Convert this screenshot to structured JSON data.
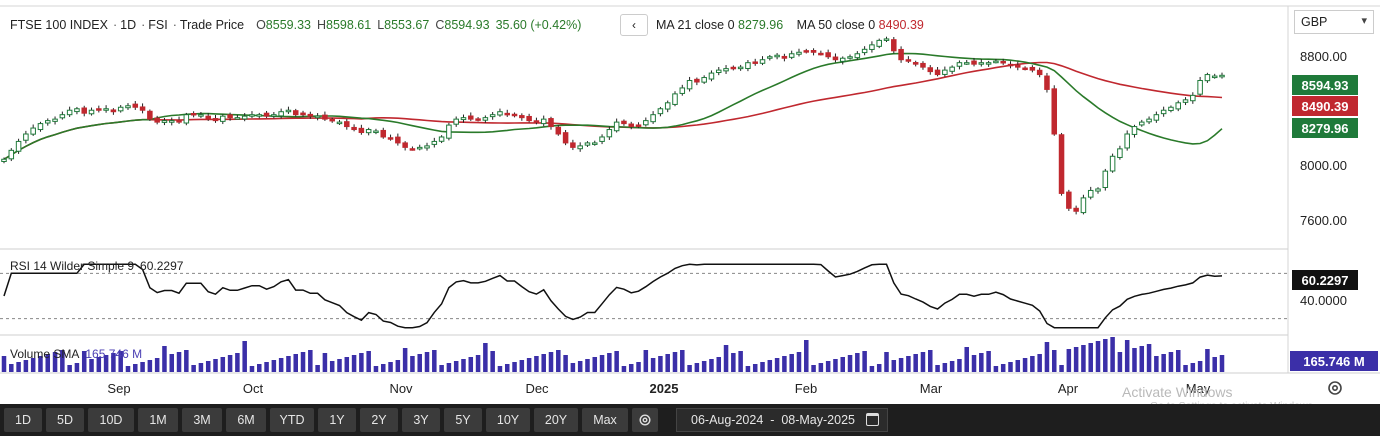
{
  "header": {
    "instrument": "FTSE 100 INDEX",
    "interval": "1D",
    "exchange": "FSI",
    "price_type": "Trade Price",
    "open_label": "O",
    "open": "8559.33",
    "high_label": "H",
    "high": "8598.61",
    "low_label": "L",
    "low": "8553.67",
    "close_label": "C",
    "close": "8594.93",
    "change": "35.60 (+0.42%)",
    "collapse_glyph": "‹"
  },
  "moving_averages": {
    "ma21_label": "MA 21 close 0",
    "ma21_value": "8279.96",
    "ma21_color": "#2a7a2a",
    "ma50_label": "MA 50 close 0",
    "ma50_value": "8490.39",
    "ma50_color": "#c0282f"
  },
  "currency": {
    "selected": "GBP",
    "caret": "▾"
  },
  "price_axis": {
    "ticks": [
      "8800.00",
      "8000.00",
      "7600.00"
    ],
    "tick_values": [
      8800,
      8000,
      7600
    ]
  },
  "price_tags": {
    "last": {
      "value": "8594.93",
      "color": "#1f7a3a"
    },
    "ma50": {
      "value": "8490.39",
      "color": "#c0282f"
    },
    "ma21": {
      "value": "8279.96",
      "color": "#1f7a3a"
    }
  },
  "rsi": {
    "label": "RSI 14 Wilder Simple 9",
    "value": "60.2297",
    "axis_tick": "40.0000",
    "tag_color": "#111111"
  },
  "volume": {
    "label": "Volume SMA",
    "value": "165.746 M",
    "tag_value": "165.746 M",
    "bar_color": "#3b2fa8"
  },
  "time_axis": {
    "labels": [
      {
        "text": "Sep",
        "bold": false
      },
      {
        "text": "Oct",
        "bold": false
      },
      {
        "text": "Nov",
        "bold": false
      },
      {
        "text": "Dec",
        "bold": false
      },
      {
        "text": "2025",
        "bold": true
      },
      {
        "text": "Feb",
        "bold": false
      },
      {
        "text": "Mar",
        "bold": false
      },
      {
        "text": "Apr",
        "bold": false
      },
      {
        "text": "May",
        "bold": false
      }
    ]
  },
  "range_buttons": [
    "1D",
    "5D",
    "10D",
    "1M",
    "3M",
    "6M",
    "YTD",
    "1Y",
    "2Y",
    "3Y",
    "5Y",
    "10Y",
    "20Y",
    "Max"
  ],
  "date_range": "06-Aug-2024  -  08-May-2025",
  "watermark": {
    "title": "Activate Windows",
    "subtitle": "Go to Settings to activate Windows."
  },
  "icons": {
    "settings": "gear-icon",
    "calendar": "calendar-icon",
    "chart_settings": "chart-settings-icon"
  },
  "chart_data": {
    "type": "candlestick",
    "x_range": [
      "06-Aug-2024",
      "08-May-2025"
    ],
    "y_range": [
      7500,
      8900
    ],
    "closes": [
      8030,
      8090,
      8150,
      8200,
      8240,
      8270,
      8290,
      8300,
      8330,
      8360,
      8370,
      8340,
      8360,
      8360,
      8370,
      8350,
      8380,
      8390,
      8380,
      8360,
      8300,
      8280,
      8290,
      8290,
      8280,
      8330,
      8330,
      8330,
      8300,
      8290,
      8320,
      8310,
      8310,
      8320,
      8330,
      8330,
      8320,
      8330,
      8350,
      8360,
      8330,
      8330,
      8320,
      8320,
      8300,
      8290,
      8280,
      8250,
      8230,
      8210,
      8230,
      8220,
      8180,
      8170,
      8140,
      8110,
      8100,
      8110,
      8120,
      8150,
      8180,
      8260,
      8300,
      8310,
      8300,
      8300,
      8310,
      8330,
      8350,
      8330,
      8330,
      8310,
      8290,
      8280,
      8300,
      8250,
      8200,
      8140,
      8110,
      8120,
      8140,
      8140,
      8180,
      8230,
      8280,
      8270,
      8250,
      8260,
      8290,
      8330,
      8370,
      8410,
      8470,
      8510,
      8560,
      8550,
      8580,
      8610,
      8630,
      8640,
      8640,
      8650,
      8680,
      8680,
      8700,
      8720,
      8730,
      8710,
      8740,
      8750,
      8760,
      8750,
      8740,
      8720,
      8700,
      8710,
      8720,
      8740,
      8770,
      8800,
      8830,
      8840,
      8760,
      8700,
      8690,
      8670,
      8650,
      8620,
      8600,
      8630,
      8650,
      8680,
      8680,
      8670,
      8680,
      8680,
      8690,
      8680,
      8660,
      8650,
      8640,
      8630,
      8600,
      8500,
      8200,
      7800,
      7700,
      7680,
      7770,
      7820,
      7830,
      7950,
      8050,
      8100,
      8200,
      8250,
      8280,
      8300,
      8330,
      8360,
      8380,
      8410,
      8430,
      8460,
      8560,
      8600,
      8590,
      8595
    ],
    "ma21_last": 8279.96,
    "ma50_last": 8490.39,
    "last_close": 8594.93,
    "rsi_last": 60.2297,
    "volume_sma_last": "165.746 M"
  }
}
